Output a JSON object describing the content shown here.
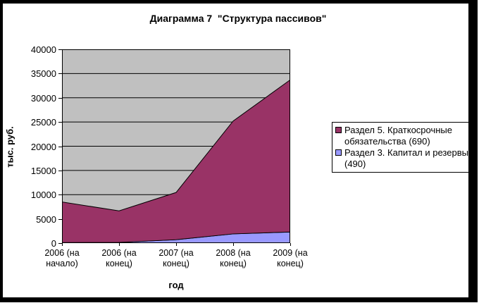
{
  "title": "Диаграмма 7  \"Структура пассивов\"",
  "colors": {
    "series_short_term": "#993366",
    "series_capital": "#9999FF",
    "plot_background": "#C0C0C0",
    "gridline": "#000000",
    "frame": "#000000",
    "chart_background": "#FFFFFF"
  },
  "chart_data": {
    "type": "area",
    "stacked": true,
    "title": "Диаграмма 7  \"Структура пассивов\"",
    "xlabel": "год",
    "ylabel": "тыс. руб.",
    "ylim": [
      0,
      40000
    ],
    "ytick_step": 5000,
    "yticks": [
      0,
      5000,
      10000,
      15000,
      20000,
      25000,
      30000,
      35000,
      40000
    ],
    "grid": true,
    "legend_position": "right",
    "plot_bg": "#C0C0C0",
    "categories": [
      "2006 (на начало)",
      "2006 (на конец)",
      "2007 (на конец)",
      "2008 (на конец)",
      "2009 (на конец)"
    ],
    "category_labels": [
      "2006  (на\nначало)",
      "2006 (на\nконец)",
      "2007  (на\nконец)",
      "2008  (на\nконец)",
      "2009   (на\nконец)"
    ],
    "series": [
      {
        "name": "Раздел 5. Краткосрочные обязательства (690)",
        "color": "#993366",
        "values": [
          8400,
          6500,
          9750,
          23300,
          31400
        ]
      },
      {
        "name": "Раздел 3. Капитал и резервы (490)",
        "color": "#9999FF",
        "values": [
          100,
          150,
          700,
          1900,
          2300
        ]
      }
    ],
    "stacked_totals": [
      8500,
      6650,
      10450,
      25200,
      33700
    ]
  }
}
